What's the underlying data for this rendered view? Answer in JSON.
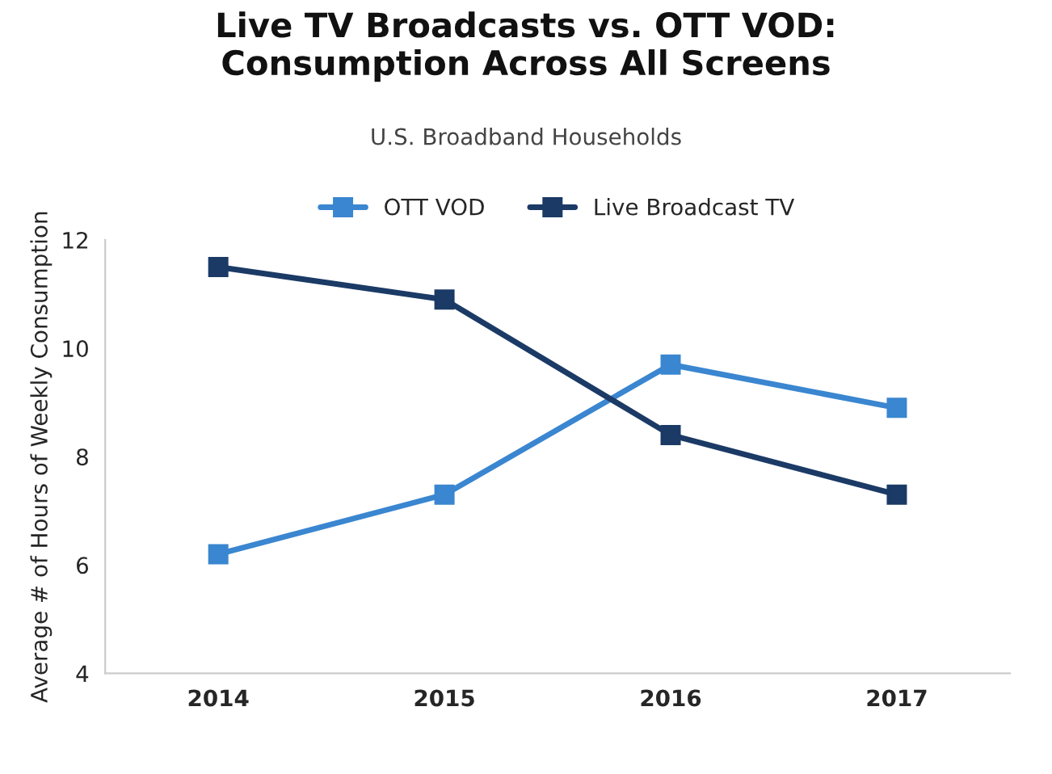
{
  "chart_data": {
    "type": "line",
    "title": "Live TV Broadcasts vs. OTT VOD:\nConsumption Across All Screens",
    "subtitle": "U.S. Broadband Households",
    "ylabel": "Average # of Hours of Weekly Consumption",
    "categories": [
      "2014",
      "2015",
      "2016",
      "2017"
    ],
    "series": [
      {
        "name": "OTT VOD",
        "color": "#3a86d0",
        "values": [
          6.2,
          7.3,
          9.7,
          8.9
        ]
      },
      {
        "name": "Live Broadcast TV",
        "color": "#1b3a66",
        "values": [
          11.5,
          10.9,
          8.4,
          7.3
        ]
      }
    ],
    "ylim": [
      4,
      12
    ],
    "yticks": [
      4,
      6,
      8,
      10,
      12
    ],
    "grid": false,
    "legend": "top",
    "marker": "square",
    "line_style": "solid"
  }
}
